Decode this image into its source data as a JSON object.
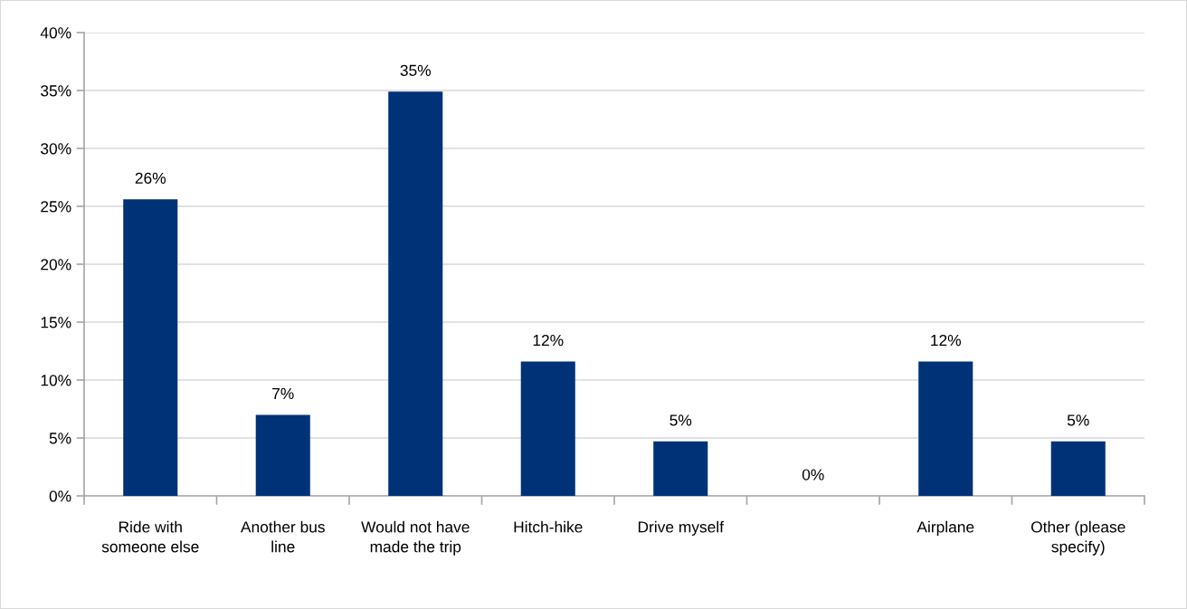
{
  "chart_data": {
    "type": "bar",
    "categories": [
      "Ride with someone else",
      "Another bus line",
      "Would not have made the trip",
      "Hitch-hike",
      "Drive myself",
      null,
      "Airplane",
      "Other (please specify)"
    ],
    "values": [
      25.6,
      7.0,
      34.9,
      11.6,
      4.7,
      0,
      11.6,
      4.7
    ],
    "value_labels": [
      "26%",
      "7%",
      "35%",
      "12%",
      "5%",
      "0%",
      "12%",
      "5%"
    ],
    "color": "#003278",
    "ylim": [
      0,
      40
    ],
    "yticks": [
      {
        "value": 0,
        "label": "0%"
      },
      {
        "value": 5,
        "label": "5%"
      },
      {
        "value": 10,
        "label": "10%"
      },
      {
        "value": 15,
        "label": "15%"
      },
      {
        "value": 20,
        "label": "20%"
      },
      {
        "value": 25,
        "label": "25%"
      },
      {
        "value": 30,
        "label": "30%"
      },
      {
        "value": 35,
        "label": "35%"
      },
      {
        "value": 40,
        "label": "40%"
      }
    ],
    "grid": "y"
  }
}
